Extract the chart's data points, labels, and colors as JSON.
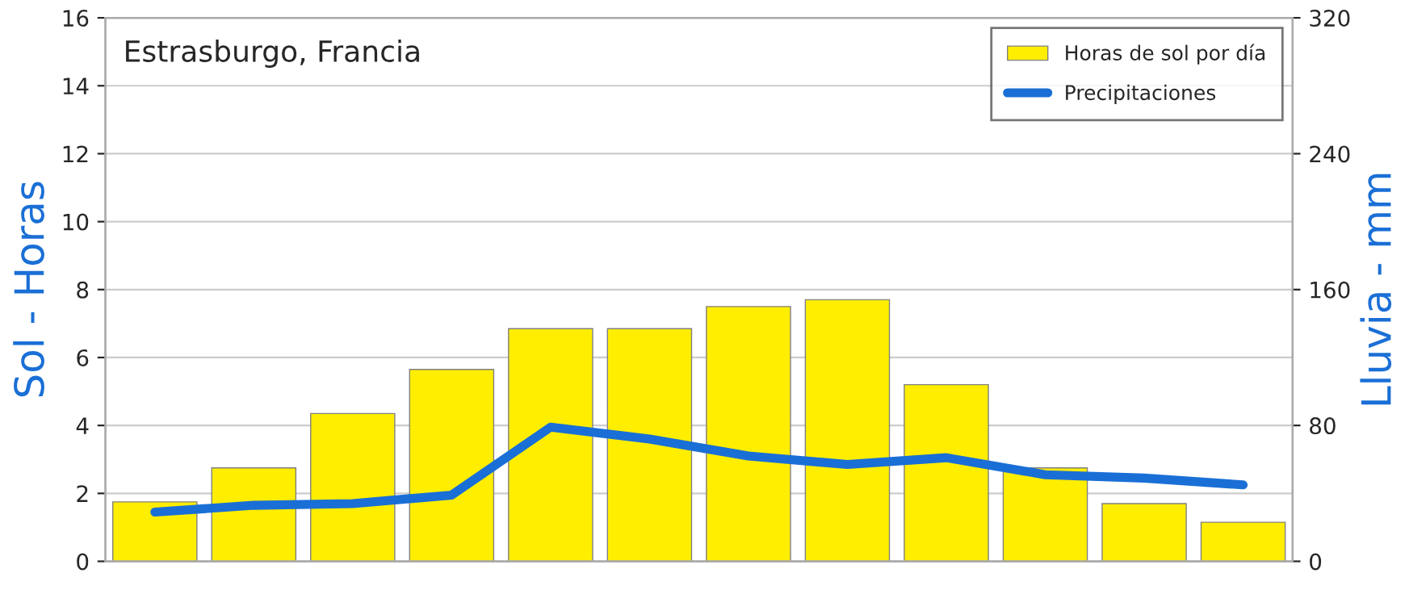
{
  "chart_data": {
    "type": "bar",
    "title": "Estrasburgo, Francia",
    "categories": [
      null,
      null,
      null,
      null,
      null,
      null,
      null,
      null,
      null,
      null,
      null,
      null
    ],
    "series": [
      {
        "name": "Horas de sol por día",
        "color": "#ffee00",
        "values": [
          1.75,
          2.75,
          4.35,
          5.65,
          6.85,
          6.85,
          7.5,
          7.7,
          5.2,
          2.75,
          1.7,
          1.15
        ]
      },
      {
        "name": "Precipitaciones",
        "type": "line",
        "axis": "y2",
        "color": "#1a6fd6",
        "values": [
          29,
          33,
          34,
          39,
          79,
          72,
          62,
          57,
          61,
          51,
          49,
          45
        ]
      }
    ],
    "ylabel": "Sol - Horas",
    "y2label": "Lluvia - mm",
    "ylim": [
      0,
      16
    ],
    "yticks": [
      0,
      2,
      4,
      6,
      8,
      10,
      12,
      14,
      16
    ],
    "y2lim": [
      0,
      320
    ],
    "y2ticks": [
      0,
      80,
      160,
      240,
      320
    ],
    "grid": "y",
    "legend": "top right",
    "line_style": "solid",
    "marker": "none"
  }
}
